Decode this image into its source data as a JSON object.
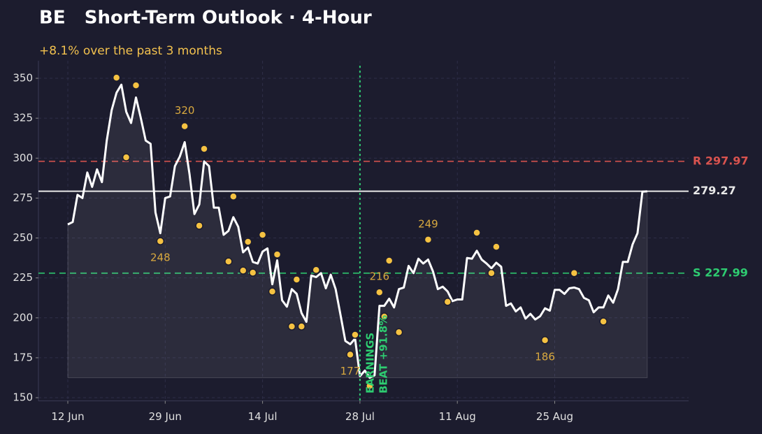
{
  "chart_data": {
    "type": "line",
    "title": "BE   Short-Term Outlook · 4-Hour",
    "subtitle": "+8.1% over the past 3 months",
    "categories": [
      "12 Jun",
      null,
      null,
      null,
      null,
      null,
      null,
      null,
      null,
      null,
      null,
      null,
      null,
      null,
      null,
      null,
      null,
      null,
      null,
      null,
      "29 Jun",
      null,
      null,
      null,
      null,
      null,
      null,
      null,
      null,
      null,
      null,
      null,
      null,
      null,
      null,
      null,
      null,
      null,
      null,
      null,
      "14 Jul",
      null,
      null,
      null,
      null,
      null,
      null,
      null,
      null,
      null,
      null,
      null,
      null,
      null,
      null,
      null,
      null,
      null,
      null,
      null,
      "28 Jul",
      null,
      null,
      null,
      null,
      null,
      null,
      null,
      null,
      null,
      null,
      null,
      null,
      null,
      null,
      null,
      null,
      null,
      null,
      null,
      "11 Aug",
      null,
      null,
      null,
      null,
      null,
      null,
      null,
      null,
      null,
      null,
      null,
      null,
      null,
      null,
      null,
      null,
      null,
      null,
      null,
      "25 Aug",
      null,
      null,
      null,
      null,
      null,
      null,
      null,
      null,
      null,
      null,
      null,
      null,
      null,
      null,
      null,
      null,
      null,
      null,
      null
    ],
    "series": [
      {
        "type": "line",
        "color": "#ffffff",
        "values": [
          258.5,
          260,
          277,
          275,
          291,
          282,
          293,
          285,
          311,
          330,
          341,
          346,
          329,
          322,
          338,
          325,
          311,
          309,
          266,
          253,
          275,
          276,
          295,
          301,
          310,
          290,
          265,
          271,
          298,
          295,
          269,
          269,
          252,
          254.5,
          263,
          257,
          241,
          244,
          235,
          234,
          241.5,
          243.5,
          221,
          236,
          211,
          207,
          218,
          215,
          203,
          197.5,
          226.5,
          225.5,
          228,
          218.5,
          227,
          218,
          202,
          185.5,
          183.5,
          187,
          163.5,
          167,
          162.5,
          164,
          207.5,
          207.5,
          212,
          206.5,
          218,
          219,
          232.5,
          228,
          237,
          234,
          236.5,
          229,
          218,
          219.5,
          216.5,
          210.5,
          211.5,
          211.5,
          237.5,
          237,
          242,
          236.5,
          234,
          231,
          234.5,
          232,
          207.5,
          209,
          204,
          206.5,
          199.5,
          202.5,
          199,
          201,
          206,
          204.5,
          217.5,
          217.5,
          215,
          218.5,
          219,
          218,
          212.5,
          211,
          203.5,
          206.5,
          206.5,
          214,
          209.5,
          218,
          235,
          235,
          246,
          253,
          279,
          279.27
        ]
      },
      {
        "type": "scatter",
        "color": "#f5c242",
        "label_color": "#d9a93f",
        "values": [
          null,
          null,
          null,
          null,
          null,
          null,
          null,
          null,
          null,
          null,
          350.4,
          null,
          300.5,
          null,
          345.6,
          null,
          null,
          null,
          null,
          248,
          null,
          null,
          null,
          null,
          320,
          null,
          null,
          257.7,
          305.8,
          null,
          null,
          null,
          null,
          235.3,
          276,
          null,
          229.6,
          247.6,
          228.3,
          null,
          252,
          null,
          216.5,
          239.7,
          null,
          null,
          194.6,
          224,
          194.6,
          null,
          null,
          230,
          null,
          null,
          null,
          null,
          null,
          null,
          177,
          189.4,
          null,
          null,
          157.4,
          null,
          216,
          200.8,
          235.8,
          null,
          191,
          null,
          null,
          null,
          null,
          null,
          249,
          null,
          null,
          null,
          210,
          null,
          null,
          null,
          null,
          null,
          253.3,
          null,
          null,
          228,
          244.5,
          null,
          null,
          null,
          null,
          null,
          null,
          null,
          null,
          null,
          186,
          null,
          null,
          null,
          null,
          null,
          228,
          null,
          null,
          null,
          null,
          null,
          197.7,
          null,
          null,
          null,
          null,
          null,
          null,
          null,
          null,
          null
        ],
        "value_labels": [
          null,
          null,
          null,
          null,
          null,
          null,
          null,
          null,
          null,
          null,
          null,
          null,
          null,
          null,
          null,
          null,
          null,
          null,
          null,
          "248",
          null,
          null,
          null,
          null,
          "320",
          null,
          null,
          null,
          null,
          null,
          null,
          null,
          null,
          null,
          null,
          null,
          null,
          null,
          null,
          null,
          null,
          null,
          null,
          null,
          null,
          null,
          null,
          null,
          null,
          null,
          null,
          null,
          null,
          null,
          null,
          null,
          null,
          null,
          "177",
          null,
          null,
          null,
          null,
          null,
          "216",
          null,
          null,
          null,
          null,
          null,
          null,
          null,
          null,
          null,
          "249",
          null,
          null,
          null,
          null,
          null,
          null,
          null,
          null,
          null,
          null,
          null,
          null,
          null,
          null,
          null,
          null,
          null,
          null,
          null,
          null,
          null,
          null,
          null,
          "186",
          null,
          null,
          null,
          null,
          null,
          null,
          null,
          null,
          null,
          null,
          null,
          null,
          null,
          null,
          null,
          null,
          null,
          null,
          null,
          null,
          null
        ]
      }
    ],
    "hlines": [
      {
        "value": 297.97,
        "label": "R 297.97",
        "color": "#d9534f",
        "style": "dashed"
      },
      {
        "value": 279.27,
        "label": "279.27",
        "color": "#e8e8e8",
        "style": "solid"
      },
      {
        "value": 227.99,
        "label": "S 227.99",
        "color": "#2ecc71",
        "style": "dashed"
      }
    ],
    "vlines": [
      {
        "category": "28 Jul",
        "lines": [
          "EARNINGS",
          "BEAT +91.8%"
        ],
        "color": "#2ecc71"
      }
    ],
    "ylim": [
      148,
      361
    ],
    "yticks": [
      150,
      175,
      200,
      225,
      250,
      275,
      300,
      325,
      350
    ],
    "grid": true
  }
}
